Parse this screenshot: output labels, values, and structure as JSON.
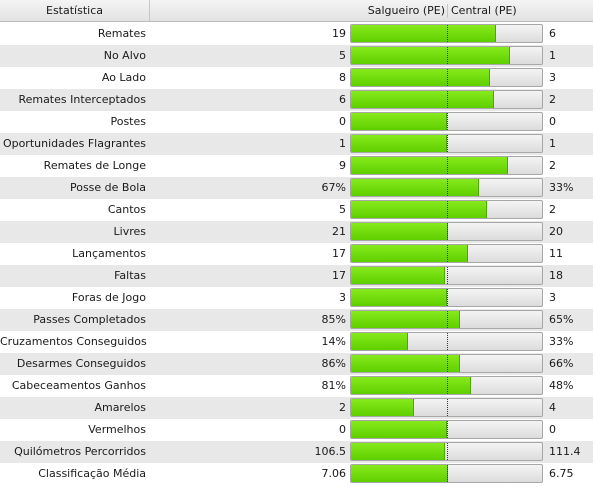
{
  "header": {
    "stat_label": "Estatística",
    "home_team": "Salgueiro (PE)",
    "away_team": "Central (PE)"
  },
  "colors": {
    "home_fill": "#6bdc00",
    "bar_background": "#e6e6e6",
    "alt_row": "#e8e8e8"
  },
  "stats": [
    {
      "label": "Remates",
      "home": "19",
      "away": "6",
      "home_share": 0.76
    },
    {
      "label": "No Alvo",
      "home": "5",
      "away": "1",
      "home_share": 0.83
    },
    {
      "label": "Ao Lado",
      "home": "8",
      "away": "3",
      "home_share": 0.73
    },
    {
      "label": "Remates Interceptados",
      "home": "6",
      "away": "2",
      "home_share": 0.75
    },
    {
      "label": "Postes",
      "home": "0",
      "away": "0",
      "home_share": 0.5
    },
    {
      "label": "Oportunidades Flagrantes",
      "home": "1",
      "away": "1",
      "home_share": 0.5
    },
    {
      "label": "Remates de Longe",
      "home": "9",
      "away": "2",
      "home_share": 0.82
    },
    {
      "label": "Posse de Bola",
      "home": "67%",
      "away": "33%",
      "home_share": 0.67
    },
    {
      "label": "Cantos",
      "home": "5",
      "away": "2",
      "home_share": 0.71
    },
    {
      "label": "Livres",
      "home": "21",
      "away": "20",
      "home_share": 0.51
    },
    {
      "label": "Lançamentos",
      "home": "17",
      "away": "11",
      "home_share": 0.61
    },
    {
      "label": "Faltas",
      "home": "17",
      "away": "18",
      "home_share": 0.49
    },
    {
      "label": "Foras de Jogo",
      "home": "3",
      "away": "3",
      "home_share": 0.5
    },
    {
      "label": "Passes Completados",
      "home": "85%",
      "away": "65%",
      "home_share": 0.57
    },
    {
      "label": "Cruzamentos Conseguidos",
      "home": "14%",
      "away": "33%",
      "home_share": 0.3
    },
    {
      "label": "Desarmes Conseguidos",
      "home": "86%",
      "away": "66%",
      "home_share": 0.57
    },
    {
      "label": "Cabeceamentos Ganhos",
      "home": "81%",
      "away": "48%",
      "home_share": 0.63
    },
    {
      "label": "Amarelos",
      "home": "2",
      "away": "4",
      "home_share": 0.33
    },
    {
      "label": "Vermelhos",
      "home": "0",
      "away": "0",
      "home_share": 0.5
    },
    {
      "label": "Quilómetros Percorridos",
      "home": "106.5",
      "away": "111.4",
      "home_share": 0.49
    },
    {
      "label": "Classificação Média",
      "home": "7.06",
      "away": "6.75",
      "home_share": 0.51
    }
  ]
}
